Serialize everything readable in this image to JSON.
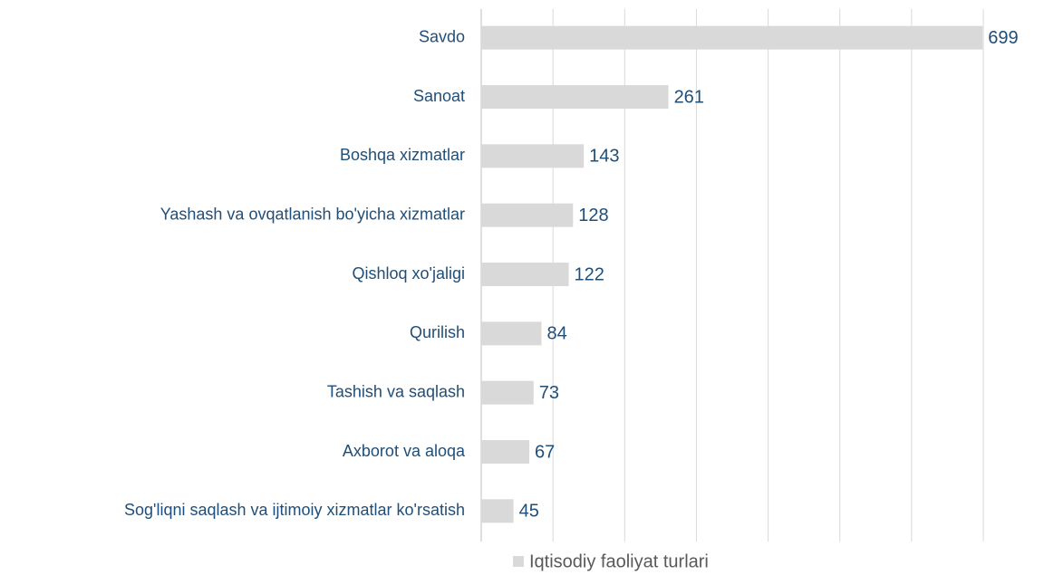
{
  "chart_data": {
    "type": "barh",
    "categories": [
      "Savdo",
      "Sanoat",
      "Boshqa xizmatlar",
      "Yashash va ovqatlanish bo'yicha xizmatlar",
      "Qishloq xo'jaligi",
      "Qurilish",
      "Tashish va saqlash",
      "Axborot va aloqa",
      "Sog'liqni saqlash va ijtimoiy xizmatlar ko'rsatish"
    ],
    "series": [
      {
        "name": "Iqtisodiy faoliyat turlari",
        "color": "#d9d9d9",
        "values": [
          699,
          261,
          143,
          128,
          122,
          84,
          73,
          67,
          45
        ]
      }
    ],
    "xlim": [
      0,
      700
    ],
    "xticks": [
      0,
      100,
      200,
      300,
      400,
      500,
      600,
      700
    ],
    "grid": true,
    "legend": "bottom"
  }
}
